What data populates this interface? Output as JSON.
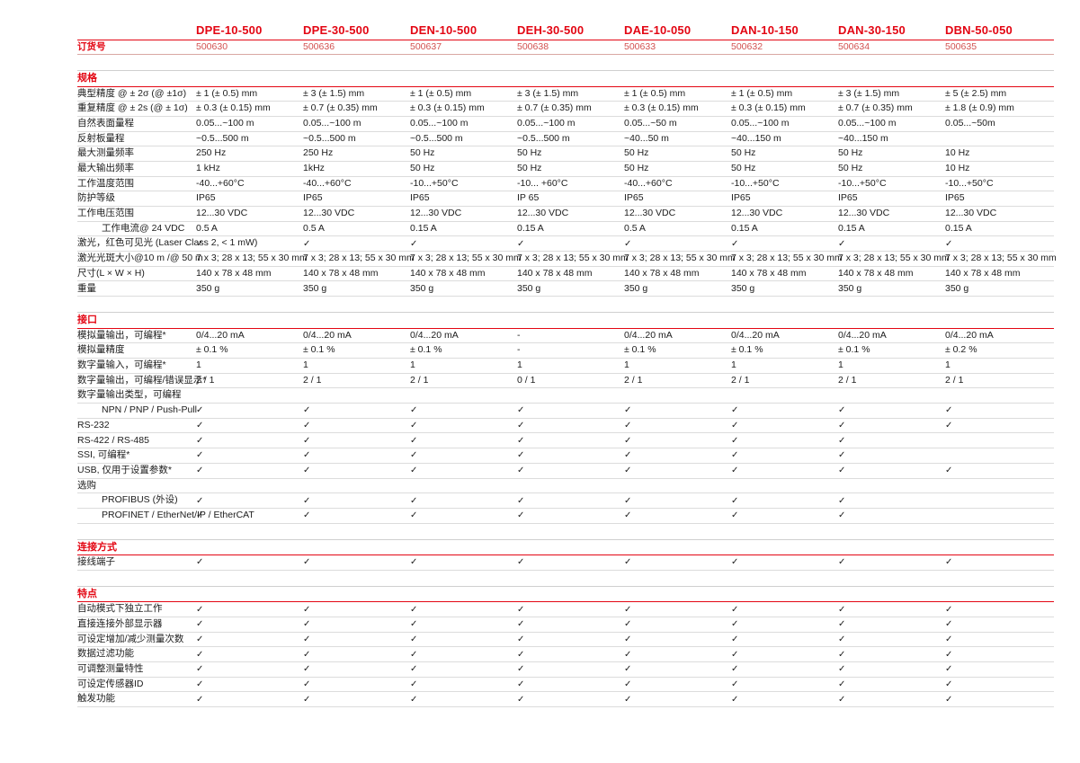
{
  "colors": {
    "accent_red": "#e30613",
    "order_number_red": "#d25150",
    "row_divider_gray": "#dcdcdc",
    "text": "#1c1c1c"
  },
  "checkmark_glyph": "✓",
  "header": {
    "order_label": "订货号",
    "products": [
      "DPE-10-500",
      "DPE-30-500",
      "DEN-10-500",
      "DEH-30-500",
      "DAE-10-050",
      "DAN-10-150",
      "DAN-30-150",
      "DBN-50-050"
    ],
    "order_numbers": [
      "500630",
      "500636",
      "500637",
      "500638",
      "500633",
      "500632",
      "500634",
      "500635"
    ]
  },
  "sections": [
    {
      "title": "规格",
      "rows": [
        {
          "label": "典型精度 @ ± 2σ (@ ±1σ)",
          "values": [
            "± 1 (± 0.5) mm",
            "± 3 (± 1.5) mm",
            "± 1 (± 0.5) mm",
            "± 3 (± 1.5) mm",
            "± 1 (± 0.5) mm",
            "± 1 (± 0.5) mm",
            "± 3 (± 1.5) mm",
            "± 5 (± 2.5) mm"
          ]
        },
        {
          "label": "重复精度 @ ± 2s (@ ± 1σ)",
          "values": [
            "± 0.3 (± 0.15) mm",
            "± 0.7 (± 0.35) mm",
            "± 0.3 (± 0.15) mm",
            "± 0.7 (± 0.35) mm",
            "± 0.3 (± 0.15) mm",
            "± 0.3 (± 0.15) mm",
            "± 0.7 (± 0.35) mm",
            "± 1.8 (± 0.9) mm"
          ]
        },
        {
          "label": "自然表面量程",
          "values": [
            "0.05...~100 m",
            "0.05...~100 m",
            "0.05...~100 m",
            "0.05...~100 m",
            "0.05...~50 m",
            "0.05...~100 m",
            "0.05...~100 m",
            "0.05...~50m"
          ]
        },
        {
          "label": "反射板量程",
          "values": [
            "~0.5...500 m",
            "~0.5...500 m",
            "~0.5...500 m",
            "~0.5...500 m",
            "~40...50 m",
            "~40...150 m",
            "~40...150 m",
            ""
          ]
        },
        {
          "label": "最大测量频率",
          "values": [
            "250 Hz",
            "250 Hz",
            "50 Hz",
            "50 Hz",
            "50 Hz",
            "50 Hz",
            "50 Hz",
            "10 Hz"
          ]
        },
        {
          "label": "最大输出频率",
          "values": [
            "1 kHz",
            "1kHz",
            "50 Hz",
            "50 Hz",
            "50 Hz",
            "50 Hz",
            "50 Hz",
            "10 Hz"
          ]
        },
        {
          "label": "工作温度范围",
          "values": [
            "-40...+60°C",
            "-40...+60°C",
            "-10...+50°C",
            "-10... +60°C",
            "-40...+60°C",
            "-10...+50°C",
            "-10...+50°C",
            "-10...+50°C"
          ]
        },
        {
          "label": "防护等级",
          "values": [
            "IP65",
            "IP65",
            "IP65",
            "IP 65",
            "IP65",
            "IP65",
            "IP65",
            "IP65"
          ]
        },
        {
          "label": "工作电压范围",
          "values": [
            "12...30 VDC",
            "12...30 VDC",
            "12...30 VDC",
            "12...30 VDC",
            "12...30 VDC",
            "12...30 VDC",
            "12...30 VDC",
            "12...30 VDC"
          ]
        },
        {
          "label": "工作电流@ 24 VDC",
          "indent": true,
          "values": [
            "0.5 A",
            "0.5 A",
            "0.15 A",
            "0.15 A",
            "0.5 A",
            "0.15 A",
            "0.15 A",
            "0.15 A"
          ]
        },
        {
          "label": "激光，红色可见光 (Laser Class 2, < 1 mW)",
          "values": [
            "✓",
            "✓",
            "✓",
            "✓",
            "✓",
            "✓",
            "✓",
            "✓"
          ]
        },
        {
          "label": "激光光斑大小@10 m /@ 50 m",
          "values": [
            "7 x 3; 28 x 13; 55 x 30 mm",
            "7 x 3; 28 x 13; 55 x 30 mm",
            "7 x 3; 28 x 13; 55 x 30 mm",
            "7 x 3; 28 x 13; 55 x 30 mm",
            "7 x 3; 28 x 13; 55 x 30 mm",
            "7 x 3; 28 x 13; 55 x 30 mm",
            "7 x 3; 28 x 13; 55 x 30 mm",
            "7 x 3; 28 x 13; 55 x 30 mm"
          ]
        },
        {
          "label": "尺寸(L × W × H)",
          "values": [
            "140 x 78 x 48 mm",
            "140 x 78 x 48 mm",
            "140 x 78 x 48 mm",
            "140 x 78 x 48 mm",
            "140 x 78 x 48 mm",
            "140 x 78 x 48 mm",
            "140 x 78 x 48 mm",
            "140 x 78 x 48 mm"
          ]
        },
        {
          "label": "重量",
          "values": [
            "350 g",
            "350 g",
            "350 g",
            "350 g",
            "350 g",
            "350 g",
            "350 g",
            "350 g"
          ]
        }
      ]
    },
    {
      "title": "接口",
      "rows": [
        {
          "label": "模拟量输出，可编程*",
          "values": [
            "0/4...20 mA",
            "0/4...20 mA",
            "0/4...20 mA",
            "-",
            "0/4...20 mA",
            "0/4...20 mA",
            "0/4...20 mA",
            "0/4...20 mA"
          ]
        },
        {
          "label": "模拟量精度",
          "values": [
            "± 0.1 %",
            "± 0.1 %",
            "± 0.1 %",
            "-",
            "± 0.1 %",
            "± 0.1 %",
            "± 0.1 %",
            "± 0.2 %"
          ]
        },
        {
          "label": "数字量输入，可编程*",
          "values": [
            "1",
            "1",
            "1",
            "1",
            "1",
            "1",
            "1",
            "1"
          ]
        },
        {
          "label": "数字量输出，可编程/错误显示*",
          "values": [
            "2 / 1",
            "2 / 1",
            "2 / 1",
            "0 / 1",
            "2 / 1",
            "2 / 1",
            "2 / 1",
            "2 / 1"
          ]
        },
        {
          "label": "数字量输出类型，可编程",
          "type": "subheader",
          "values": []
        },
        {
          "label": "NPN / PNP / Push-Pull",
          "indent": true,
          "values": [
            "✓",
            "✓",
            "✓",
            "✓",
            "✓",
            "✓",
            "✓",
            "✓"
          ]
        },
        {
          "label": "RS-232",
          "values": [
            "✓",
            "✓",
            "✓",
            "✓",
            "✓",
            "✓",
            "✓",
            "✓"
          ]
        },
        {
          "label": "RS-422 / RS-485",
          "values": [
            "✓",
            "✓",
            "✓",
            "✓",
            "✓",
            "✓",
            "✓",
            ""
          ]
        },
        {
          "label": "SSI, 可编程*",
          "values": [
            "✓",
            "✓",
            "✓",
            "✓",
            "✓",
            "✓",
            "✓",
            ""
          ]
        },
        {
          "label": "USB, 仅用于设置参数*",
          "values": [
            "✓",
            "✓",
            "✓",
            "✓",
            "✓",
            "✓",
            "✓",
            "✓"
          ]
        },
        {
          "label": "选购",
          "type": "subheader",
          "values": []
        },
        {
          "label": "PROFIBUS (外设)",
          "indent": true,
          "values": [
            "✓",
            "✓",
            "✓",
            "✓",
            "✓",
            "✓",
            "✓",
            ""
          ]
        },
        {
          "label": "PROFINET / EtherNet/IP / EtherCAT",
          "indent": true,
          "values": [
            "✓",
            "✓",
            "✓",
            "✓",
            "✓",
            "✓",
            "✓",
            ""
          ]
        }
      ]
    },
    {
      "title": "连接方式",
      "rows": [
        {
          "label": "接线端子",
          "values": [
            "✓",
            "✓",
            "✓",
            "✓",
            "✓",
            "✓",
            "✓",
            "✓"
          ]
        }
      ]
    },
    {
      "title": "特点",
      "rows": [
        {
          "label": "自动模式下独立工作",
          "values": [
            "✓",
            "✓",
            "✓",
            "✓",
            "✓",
            "✓",
            "✓",
            "✓"
          ]
        },
        {
          "label": "直接连接外部显示器",
          "values": [
            "✓",
            "✓",
            "✓",
            "✓",
            "✓",
            "✓",
            "✓",
            "✓"
          ]
        },
        {
          "label": "可设定增加/减少测量次数",
          "values": [
            "✓",
            "✓",
            "✓",
            "✓",
            "✓",
            "✓",
            "✓",
            "✓"
          ]
        },
        {
          "label": "数据过滤功能",
          "values": [
            "✓",
            "✓",
            "✓",
            "✓",
            "✓",
            "✓",
            "✓",
            "✓"
          ]
        },
        {
          "label": "可调整测量特性",
          "values": [
            "✓",
            "✓",
            "✓",
            "✓",
            "✓",
            "✓",
            "✓",
            "✓"
          ]
        },
        {
          "label": "可设定传感器ID",
          "values": [
            "✓",
            "✓",
            "✓",
            "✓",
            "✓",
            "✓",
            "✓",
            "✓"
          ]
        },
        {
          "label": "触发功能",
          "values": [
            "✓",
            "✓",
            "✓",
            "✓",
            "✓",
            "✓",
            "✓",
            "✓"
          ]
        }
      ]
    }
  ]
}
